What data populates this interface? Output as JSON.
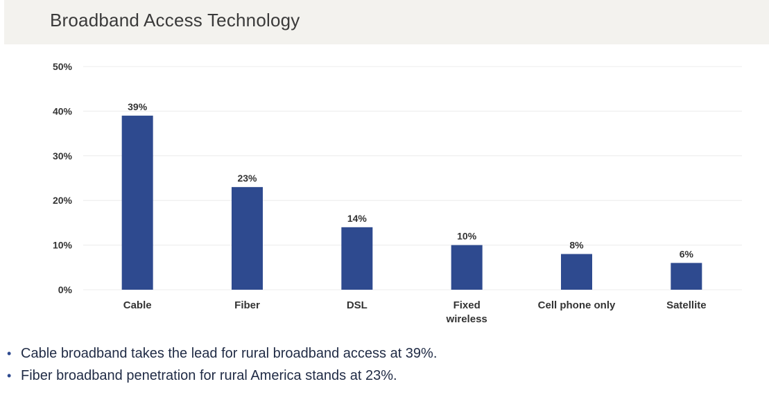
{
  "header": {
    "title": "Broadband Access Technology"
  },
  "chart_data": {
    "type": "bar",
    "title": "Broadband Access Technology",
    "categories": [
      "Cable",
      "Fiber",
      "DSL",
      "Fixed wireless",
      "Cell phone only",
      "Satellite"
    ],
    "category_lines": [
      [
        "Cable"
      ],
      [
        "Fiber"
      ],
      [
        "DSL"
      ],
      [
        "Fixed",
        "wireless"
      ],
      [
        "Cell phone only"
      ],
      [
        "Satellite"
      ]
    ],
    "values": [
      39,
      23,
      14,
      10,
      8,
      6
    ],
    "value_labels": [
      "39%",
      "23%",
      "14%",
      "10%",
      "8%",
      "6%"
    ],
    "yticks": [
      0,
      10,
      20,
      30,
      40,
      50
    ],
    "ytick_labels": [
      "0%",
      "10%",
      "20%",
      "30%",
      "40%",
      "50%"
    ],
    "ylim": [
      0,
      50
    ],
    "xlabel": "",
    "ylabel": "",
    "grid": true,
    "bar_color": "#2e4a8f",
    "grid_color": "#ececec",
    "text_color": "#333333"
  },
  "notes": [
    "Cable broadband takes the lead for rural broadband access at 39%.",
    "Fiber broadband penetration for rural America stands at 23%."
  ]
}
